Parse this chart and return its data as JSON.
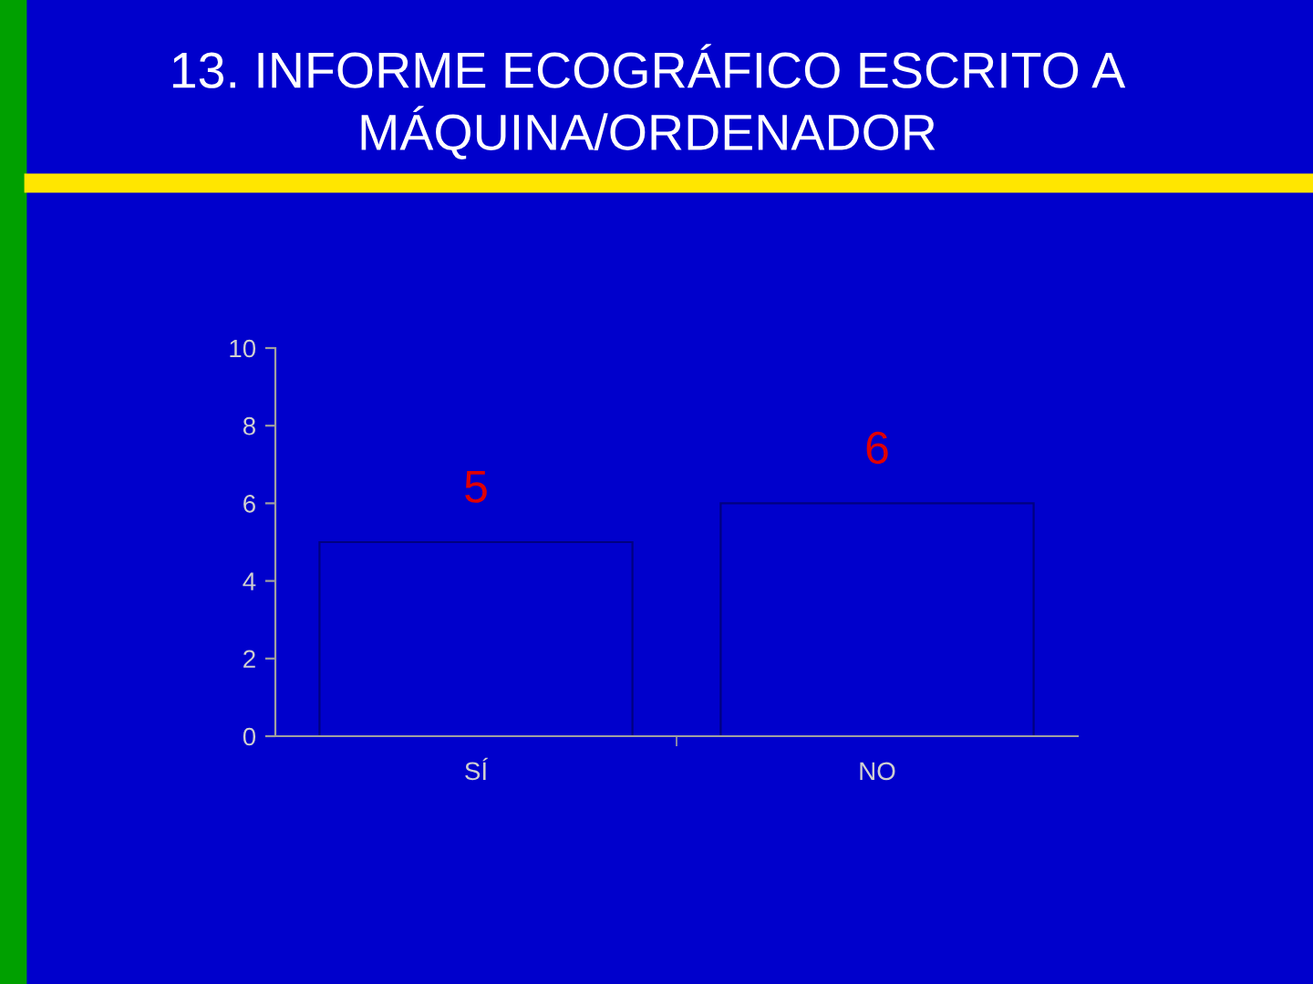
{
  "chart_data": {
    "type": "bar",
    "title": "13. INFORME ECOGRÁFICO ESCRITO A MÁQUINA/ORDENADOR",
    "categories": [
      "SÍ",
      "NO"
    ],
    "values": [
      5,
      6
    ],
    "color": "#0000cc",
    "ylim": [
      0,
      10
    ],
    "yticks": [
      0,
      2,
      4,
      6,
      8,
      10
    ],
    "data_labels": true,
    "grid": false,
    "legend": false
  }
}
